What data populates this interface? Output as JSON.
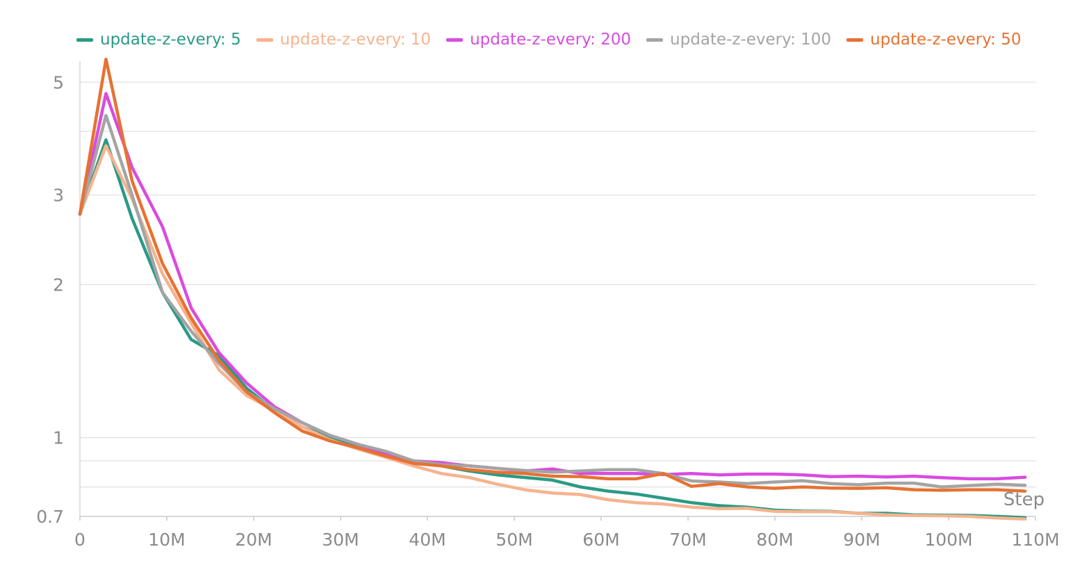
{
  "chart_data": {
    "type": "line",
    "title": "",
    "xlabel": "Step",
    "ylabel": "",
    "yscale": "log",
    "xlim": [
      0,
      110000000
    ],
    "ylim": [
      0.7,
      5.5
    ],
    "grid": true,
    "legend_position": "top",
    "x_ticks": [
      0,
      10000000,
      20000000,
      30000000,
      40000000,
      50000000,
      60000000,
      70000000,
      80000000,
      90000000,
      100000000,
      110000000
    ],
    "x_tick_labels": [
      "0",
      "10M",
      "20M",
      "30M",
      "40M",
      "50M",
      "60M",
      "70M",
      "80M",
      "90M",
      "100M",
      "110M"
    ],
    "y_ticks": [
      0.7,
      1,
      2,
      3,
      5
    ],
    "y_tick_labels": [
      "0.7",
      "1",
      "2",
      "3",
      "5"
    ],
    "y_gridlines": [
      0.7,
      0.8,
      0.9,
      1,
      2,
      3,
      4,
      5
    ],
    "x": [
      0,
      3000000,
      6000000,
      9500000,
      12800000,
      16000000,
      19200000,
      22400000,
      25600000,
      28800000,
      32000000,
      35200000,
      38400000,
      41600000,
      44800000,
      48000000,
      51200000,
      54400000,
      57600000,
      60800000,
      64000000,
      67200000,
      70400000,
      73600000,
      76800000,
      80000000,
      83200000,
      86400000,
      89600000,
      92800000,
      96000000,
      99200000,
      102400000,
      105600000,
      108800000
    ],
    "series": [
      {
        "name": "update-z-every: 5",
        "color": "#2a9a86",
        "values": [
          2.75,
          3.85,
          2.7,
          1.93,
          1.56,
          1.45,
          1.25,
          1.13,
          1.05,
          1.0,
          0.96,
          0.93,
          0.9,
          0.88,
          0.86,
          0.845,
          0.835,
          0.825,
          0.8,
          0.785,
          0.775,
          0.76,
          0.745,
          0.735,
          0.73,
          0.72,
          0.717,
          0.716,
          0.71,
          0.71,
          0.705,
          0.704,
          0.703,
          0.7,
          0.696
        ]
      },
      {
        "name": "update-z-every: 10",
        "color": "#f6b38f",
        "values": [
          2.75,
          3.75,
          2.95,
          2.1,
          1.68,
          1.36,
          1.21,
          1.13,
          1.05,
          0.99,
          0.95,
          0.915,
          0.88,
          0.85,
          0.835,
          0.81,
          0.79,
          0.778,
          0.773,
          0.755,
          0.745,
          0.74,
          0.73,
          0.725,
          0.726,
          0.716,
          0.715,
          0.715,
          0.71,
          0.705,
          0.703,
          0.702,
          0.7,
          0.695,
          0.692
        ]
      },
      {
        "name": "update-z-every: 200",
        "color": "#d94be0",
        "values": [
          2.75,
          4.75,
          3.4,
          2.6,
          1.8,
          1.47,
          1.28,
          1.15,
          1.07,
          1.01,
          0.97,
          0.93,
          0.9,
          0.893,
          0.88,
          0.87,
          0.86,
          0.868,
          0.85,
          0.85,
          0.85,
          0.846,
          0.85,
          0.845,
          0.848,
          0.848,
          0.845,
          0.838,
          0.84,
          0.837,
          0.84,
          0.834,
          0.83,
          0.83,
          0.836
        ]
      },
      {
        "name": "update-z-every: 100",
        "color": "#a4a4a4",
        "values": [
          2.75,
          4.3,
          3.0,
          1.93,
          1.62,
          1.4,
          1.23,
          1.14,
          1.07,
          1.01,
          0.97,
          0.94,
          0.9,
          0.885,
          0.88,
          0.87,
          0.862,
          0.855,
          0.86,
          0.865,
          0.865,
          0.85,
          0.822,
          0.818,
          0.812,
          0.818,
          0.823,
          0.812,
          0.808,
          0.814,
          0.814,
          0.8,
          0.805,
          0.81,
          0.806
        ]
      },
      {
        "name": "update-z-every: 50",
        "color": "#e67232",
        "values": [
          2.75,
          5.55,
          3.2,
          2.2,
          1.72,
          1.42,
          1.23,
          1.12,
          1.03,
          0.985,
          0.955,
          0.92,
          0.89,
          0.88,
          0.865,
          0.855,
          0.85,
          0.84,
          0.838,
          0.83,
          0.83,
          0.85,
          0.802,
          0.812,
          0.8,
          0.795,
          0.8,
          0.796,
          0.795,
          0.797,
          0.79,
          0.788,
          0.79,
          0.79,
          0.785
        ]
      }
    ]
  }
}
